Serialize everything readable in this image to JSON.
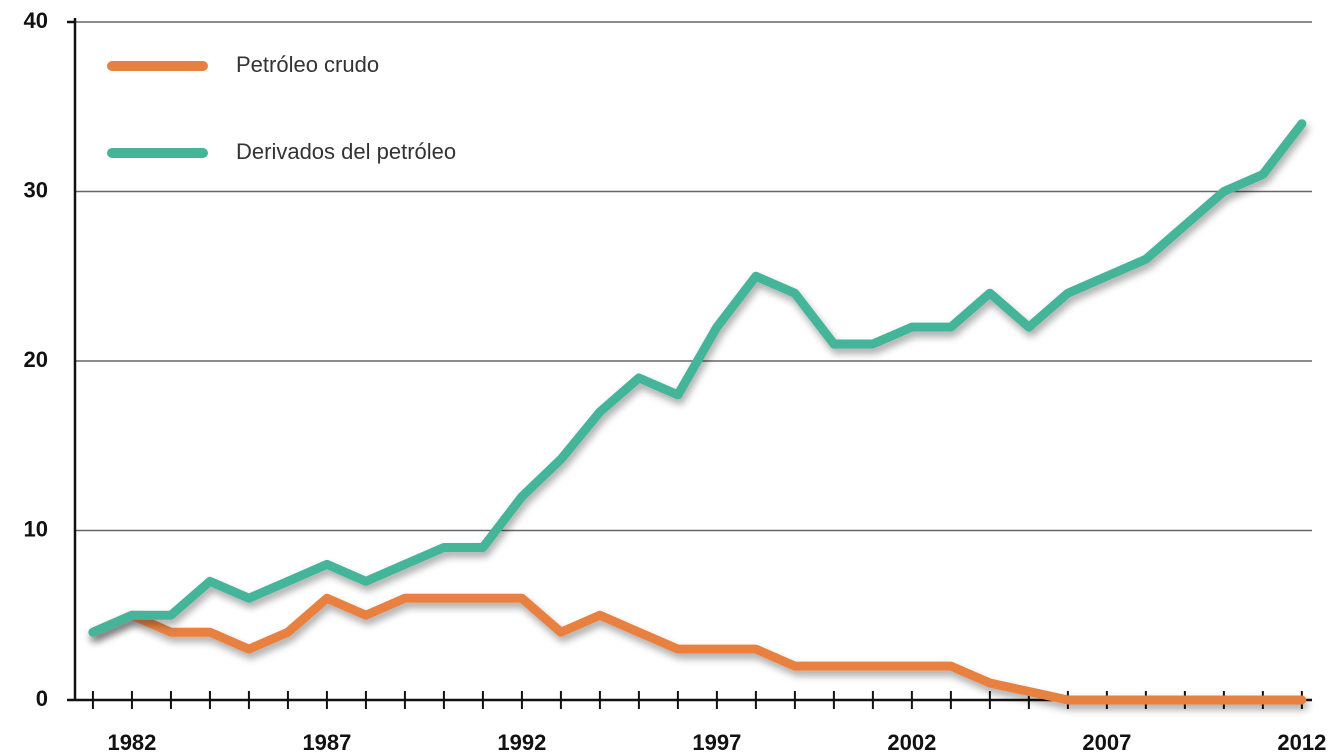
{
  "chart_data": {
    "type": "line",
    "x": [
      1981,
      1982,
      1983,
      1984,
      1985,
      1986,
      1987,
      1988,
      1989,
      1990,
      1991,
      1992,
      1993,
      1994,
      1995,
      1996,
      1997,
      1998,
      1999,
      2000,
      2001,
      2002,
      2003,
      2004,
      2005,
      2006,
      2007,
      2008,
      2009,
      2010,
      2011,
      2012
    ],
    "series": [
      {
        "name": "Petróleo crudo",
        "color": "#e8803f",
        "values": [
          4,
          5,
          4,
          4,
          3,
          4,
          6,
          5,
          6,
          6,
          6,
          6,
          4,
          5,
          4,
          3,
          3,
          3,
          2,
          2,
          2,
          2,
          2,
          1,
          0.5,
          0,
          0,
          0,
          0,
          0,
          0,
          0
        ]
      },
      {
        "name": "Derivados del petróleo",
        "color": "#45b59a",
        "values": [
          4,
          5,
          5,
          7,
          6,
          7,
          8,
          7,
          8,
          9,
          9,
          12,
          14.2,
          17,
          19,
          18,
          22,
          25,
          24,
          21,
          21,
          22,
          22,
          24,
          22,
          24,
          25,
          26,
          28,
          30,
          31,
          34
        ]
      }
    ],
    "xlim": [
      1980.54,
      2012.26
    ],
    "xticks": [
      1982,
      1987,
      1992,
      1997,
      2002,
      2007,
      2012
    ],
    "xminorticks": [
      1981,
      1983,
      1984,
      1985,
      1986,
      1988,
      1989,
      1990,
      1991,
      1993,
      1994,
      1995,
      1996,
      1998,
      1999,
      2000,
      2001,
      2003,
      2004,
      2005,
      2006,
      2008,
      2009,
      2010,
      2011
    ],
    "ylim": [
      0,
      40
    ],
    "yticks": [
      0,
      10,
      20,
      30,
      40
    ],
    "grid": true,
    "legend": "upper left"
  }
}
